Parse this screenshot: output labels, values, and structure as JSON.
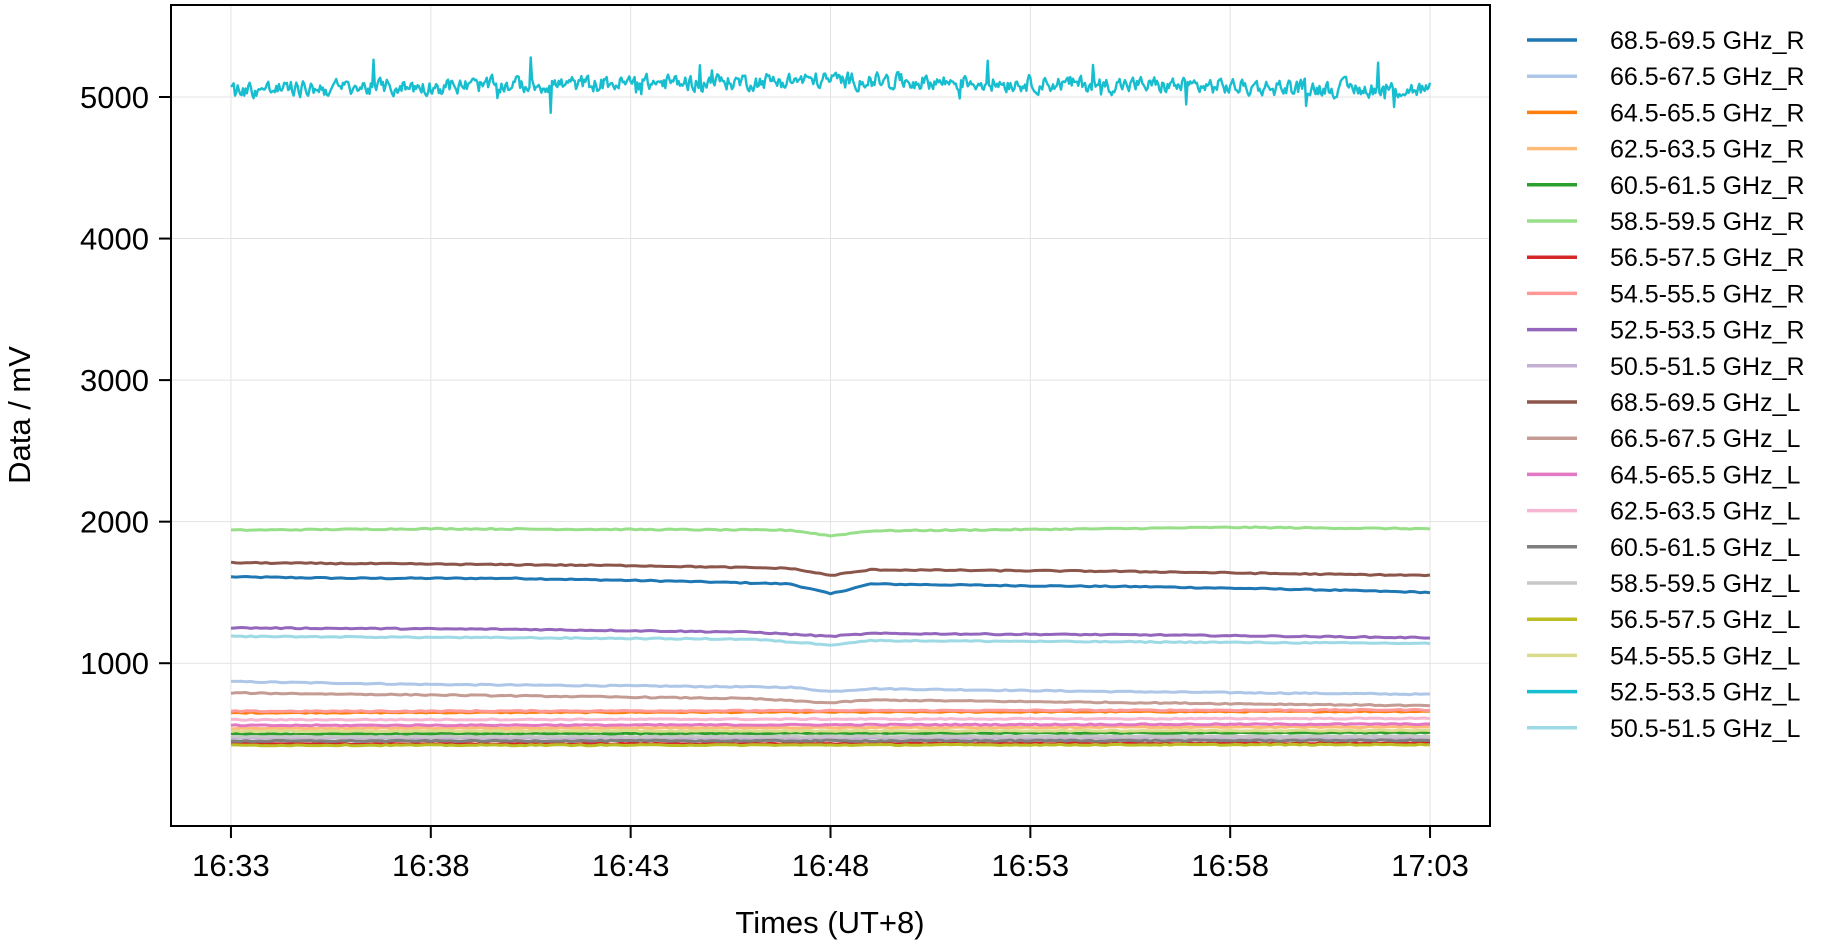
{
  "chart_data": {
    "type": "line",
    "title": "",
    "xlabel": "Times (UT+8)",
    "ylabel": "Data / mV",
    "x_tick_labels": [
      "16:33",
      "16:38",
      "16:43",
      "16:48",
      "16:53",
      "16:58",
      "17:03"
    ],
    "x_range": [
      "16:31:30",
      "17:04:30"
    ],
    "y_ticks": [
      1000,
      2000,
      3000,
      4000,
      5000
    ],
    "ylim": [
      -150,
      5650
    ],
    "grid": true,
    "legend_placement": "outside-right",
    "series": [
      {
        "name": "68.5-69.5 GHz_R",
        "color": "#1f77b4",
        "points": [
          [
            "16:33",
            1610
          ],
          [
            "16:36",
            1600
          ],
          [
            "16:40",
            1600
          ],
          [
            "16:44",
            1580
          ],
          [
            "16:47",
            1560
          ],
          [
            "16:48",
            1490
          ],
          [
            "16:49",
            1560
          ],
          [
            "16:52",
            1550
          ],
          [
            "16:56",
            1540
          ],
          [
            "17:00",
            1520
          ],
          [
            "17:03",
            1500
          ]
        ]
      },
      {
        "name": "66.5-67.5 GHz_R",
        "color": "#aec7e8",
        "points": [
          [
            "16:33",
            870
          ],
          [
            "16:38",
            850
          ],
          [
            "16:43",
            840
          ],
          [
            "16:47",
            830
          ],
          [
            "16:48",
            800
          ],
          [
            "16:49",
            820
          ],
          [
            "16:55",
            800
          ],
          [
            "17:03",
            780
          ]
        ]
      },
      {
        "name": "64.5-65.5 GHz_R",
        "color": "#ff7f0e",
        "points": [
          [
            "16:33",
            650
          ],
          [
            "16:48",
            655
          ],
          [
            "17:03",
            660
          ]
        ]
      },
      {
        "name": "62.5-63.5 GHz_R",
        "color": "#ffbb78",
        "points": [
          [
            "16:33",
            540
          ],
          [
            "16:48",
            545
          ],
          [
            "17:03",
            550
          ]
        ]
      },
      {
        "name": "60.5-61.5 GHz_R",
        "color": "#2ca02c",
        "points": [
          [
            "16:33",
            500
          ],
          [
            "16:48",
            505
          ],
          [
            "17:03",
            510
          ]
        ]
      },
      {
        "name": "58.5-59.5 GHz_R",
        "color": "#98df8a",
        "points": [
          [
            "16:33",
            1940
          ],
          [
            "16:38",
            1950
          ],
          [
            "16:43",
            1945
          ],
          [
            "16:47",
            1940
          ],
          [
            "16:48",
            1900
          ],
          [
            "16:49",
            1935
          ],
          [
            "16:55",
            1950
          ],
          [
            "16:58",
            1960
          ],
          [
            "17:03",
            1950
          ]
        ]
      },
      {
        "name": "56.5-57.5 GHz_R",
        "color": "#d62728",
        "points": [
          [
            "16:33",
            430
          ],
          [
            "16:48",
            432
          ],
          [
            "17:03",
            435
          ]
        ]
      },
      {
        "name": "54.5-55.5 GHz_R",
        "color": "#ff9896",
        "points": [
          [
            "16:33",
            660
          ],
          [
            "16:48",
            665
          ],
          [
            "17:03",
            670
          ]
        ]
      },
      {
        "name": "52.5-53.5 GHz_R",
        "color": "#9467bd",
        "points": [
          [
            "16:33",
            1250
          ],
          [
            "16:40",
            1240
          ],
          [
            "16:46",
            1220
          ],
          [
            "16:48",
            1190
          ],
          [
            "16:49",
            1210
          ],
          [
            "16:56",
            1200
          ],
          [
            "17:03",
            1180
          ]
        ]
      },
      {
        "name": "50.5-51.5 GHz_R",
        "color": "#c5b0d5",
        "points": [
          [
            "16:33",
            470
          ],
          [
            "16:48",
            472
          ],
          [
            "17:03",
            475
          ]
        ]
      },
      {
        "name": "68.5-69.5 GHz_L",
        "color": "#8c564b",
        "points": [
          [
            "16:33",
            1710
          ],
          [
            "16:38",
            1700
          ],
          [
            "16:43",
            1690
          ],
          [
            "16:47",
            1670
          ],
          [
            "16:48",
            1620
          ],
          [
            "16:49",
            1660
          ],
          [
            "16:55",
            1650
          ],
          [
            "17:00",
            1630
          ],
          [
            "17:03",
            1620
          ]
        ]
      },
      {
        "name": "66.5-67.5 GHz_L",
        "color": "#c49c94",
        "points": [
          [
            "16:33",
            790
          ],
          [
            "16:40",
            770
          ],
          [
            "16:46",
            750
          ],
          [
            "16:48",
            720
          ],
          [
            "16:49",
            740
          ],
          [
            "16:56",
            720
          ],
          [
            "17:03",
            700
          ]
        ]
      },
      {
        "name": "64.5-65.5 GHz_L",
        "color": "#e377c2",
        "points": [
          [
            "16:33",
            560
          ],
          [
            "16:48",
            565
          ],
          [
            "17:03",
            570
          ]
        ]
      },
      {
        "name": "62.5-63.5 GHz_L",
        "color": "#f7b6d2",
        "points": [
          [
            "16:33",
            600
          ],
          [
            "16:48",
            605
          ],
          [
            "17:03",
            610
          ]
        ]
      },
      {
        "name": "60.5-61.5 GHz_L",
        "color": "#7f7f7f",
        "points": [
          [
            "16:33",
            450
          ],
          [
            "16:48",
            452
          ],
          [
            "17:03",
            455
          ]
        ]
      },
      {
        "name": "58.5-59.5 GHz_L",
        "color": "#c7c7c7",
        "points": [
          [
            "16:33",
            480
          ],
          [
            "16:48",
            483
          ],
          [
            "17:03",
            485
          ]
        ]
      },
      {
        "name": "56.5-57.5 GHz_L",
        "color": "#bcbd22",
        "points": [
          [
            "16:33",
            420
          ],
          [
            "16:48",
            422
          ],
          [
            "17:03",
            425
          ]
        ]
      },
      {
        "name": "54.5-55.5 GHz_L",
        "color": "#dbdb8d",
        "points": [
          [
            "16:33",
            520
          ],
          [
            "16:48",
            522
          ],
          [
            "17:03",
            525
          ]
        ]
      },
      {
        "name": "52.5-53.5 GHz_L",
        "color": "#17becf",
        "level": 5100,
        "noise_amplitude": 90,
        "range": [
          4780,
          5400
        ],
        "points": [
          [
            "16:33",
            5050
          ],
          [
            "16:48",
            5120
          ],
          [
            "17:03",
            5050
          ]
        ]
      },
      {
        "name": "50.5-51.5 GHz_L",
        "color": "#9edae5",
        "points": [
          [
            "16:33",
            1190
          ],
          [
            "16:40",
            1180
          ],
          [
            "16:46",
            1170
          ],
          [
            "16:48",
            1130
          ],
          [
            "16:49",
            1160
          ],
          [
            "16:56",
            1150
          ],
          [
            "17:03",
            1140
          ]
        ]
      }
    ]
  }
}
